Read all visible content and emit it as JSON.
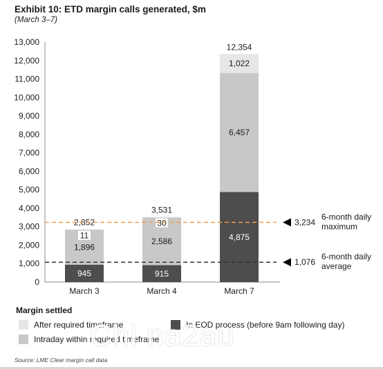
{
  "header": {
    "title": "Exhibit 10: ETD margin calls generated, $m",
    "subtitle": "(March 3–7)"
  },
  "legend": {
    "title": "Margin settled",
    "items": [
      {
        "label": "After required timeframe",
        "color": "#e6e6e6"
      },
      {
        "label": "Intraday within required timeframe",
        "color": "#c8c8c8"
      },
      {
        "label": "In EOD process (before 9am following day)",
        "color": "#4d4d4d"
      }
    ]
  },
  "source": "Source: LME Clear margin call data",
  "watermark": "Chi na2au",
  "chart_data": {
    "type": "bar",
    "stacked": true,
    "categories": [
      "March 3",
      "March 4",
      "March 7"
    ],
    "series": [
      {
        "values": [
          945,
          915,
          4875
        ],
        "color": "#4d4d4d"
      },
      {
        "values": [
          1896,
          2586,
          6457
        ],
        "color": "#c8c8c8"
      },
      {
        "values": [
          11,
          30,
          1022
        ],
        "color": "#e6e6e6"
      }
    ],
    "totals": [
      2852,
      3531,
      12354
    ],
    "ylim": [
      0,
      13000
    ],
    "yticks": [
      0,
      1000,
      2000,
      3000,
      4000,
      5000,
      6000,
      7000,
      8000,
      9000,
      10000,
      11000,
      12000,
      13000
    ],
    "ytick_labels": [
      "0",
      "1,000",
      "2,000",
      "3,000",
      "4,000",
      "5,000",
      "6,000",
      "7,000",
      "8,000",
      "9,000",
      "10,000",
      "11,000",
      "12,000",
      "13,000"
    ],
    "reference_lines": [
      {
        "value": 3234,
        "value_label": "3,234",
        "label_lines": [
          "6-month daily",
          "maximum"
        ],
        "color": "#f0a050"
      },
      {
        "value": 1076,
        "value_label": "1,076",
        "label_lines": [
          "6-month daily",
          "average"
        ],
        "color": "#333333"
      }
    ],
    "grid": false
  }
}
